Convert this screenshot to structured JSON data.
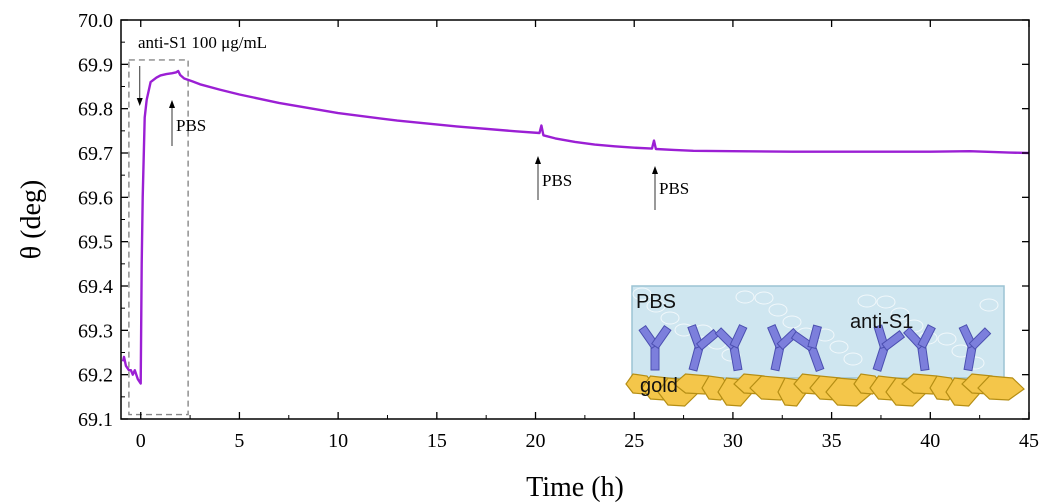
{
  "chart_data": {
    "type": "line",
    "xlabel": "Time (h)",
    "ylabel": "θ (deg)",
    "xlim": [
      -1,
      45
    ],
    "ylim": [
      69.1,
      70.0
    ],
    "x_ticks": [
      0,
      5,
      10,
      15,
      20,
      25,
      30,
      35,
      40,
      45
    ],
    "x_tick_labels": [
      "0",
      "5",
      "10",
      "15",
      "20",
      "25",
      "30",
      "35",
      "40",
      "45"
    ],
    "y_ticks": [
      69.1,
      69.2,
      69.3,
      69.4,
      69.5,
      69.6,
      69.7,
      69.8,
      69.9,
      70.0
    ],
    "y_tick_labels": [
      "69.1",
      "69.2",
      "69.3",
      "69.4",
      "69.5",
      "69.6",
      "69.7",
      "69.8",
      "69.9",
      "70.0"
    ],
    "grid": false,
    "series": [
      {
        "color": "#9b1fd4",
        "x": [
          -0.9,
          -0.85,
          -0.75,
          -0.6,
          -0.5,
          -0.4,
          -0.3,
          -0.15,
          0.0,
          0.05,
          0.1,
          0.2,
          0.3,
          0.5,
          0.8,
          1.0,
          1.3,
          1.6,
          1.8,
          1.9,
          2.0,
          2.2,
          2.6,
          3.0,
          4.0,
          5.0,
          7.0,
          10.0,
          13.0,
          16.0,
          19.0,
          20.2,
          20.3,
          20.4,
          21.0,
          22.0,
          23.0,
          24.0,
          25.0,
          25.9,
          26.0,
          26.1,
          27.0,
          28.0,
          30.0,
          33.0,
          36.0,
          40.0,
          42.0,
          44.0,
          45.0
        ],
        "y": [
          69.23,
          69.24,
          69.22,
          69.21,
          69.21,
          69.2,
          69.21,
          69.19,
          69.18,
          69.45,
          69.6,
          69.78,
          69.82,
          69.86,
          69.87,
          69.875,
          69.878,
          69.88,
          69.882,
          69.885,
          69.876,
          69.868,
          69.862,
          69.855,
          69.843,
          69.832,
          69.813,
          69.79,
          69.773,
          69.76,
          69.749,
          69.745,
          69.762,
          69.74,
          69.733,
          69.725,
          69.719,
          69.715,
          69.712,
          69.71,
          69.728,
          69.709,
          69.707,
          69.705,
          69.704,
          69.703,
          69.703,
          69.703,
          69.704,
          69.701,
          69.7
        ]
      }
    ],
    "annotations": [
      {
        "text": "anti-S1 100 μg/mL",
        "x": 0.0,
        "y": 69.8
      },
      {
        "text": "PBS",
        "x": 1.8,
        "y": 69.8
      },
      {
        "text": "PBS",
        "x": 20.3,
        "y": 69.72
      },
      {
        "text": "PBS",
        "x": 26.0,
        "y": 69.7
      }
    ],
    "highlight_box": {
      "x": [
        -0.6,
        2.4
      ],
      "y": [
        69.11,
        69.91
      ]
    }
  },
  "inset": {
    "labels": {
      "buffer": "PBS",
      "antibody": "anti-S1",
      "surface": "gold"
    },
    "colors": {
      "buffer": "#cfe6f0",
      "gold": "#f4c64a",
      "gold_edge": "#b58e14",
      "antibody": "#7c7fdc",
      "antibody_edge": "#4b4fb0"
    }
  }
}
